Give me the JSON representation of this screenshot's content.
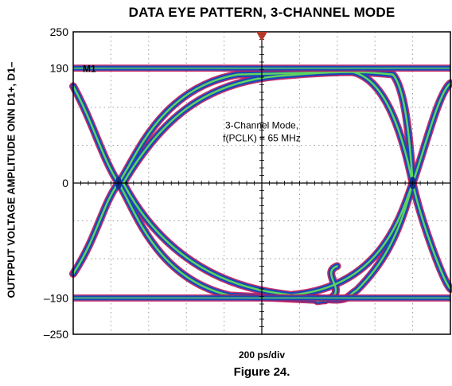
{
  "chart_data": {
    "type": "line",
    "title": "DATA EYE PATTERN, 3-CHANNEL MODE",
    "ylabel": "OUTPPUT VOLTAGE AMPLITUDE ONN D1+, D1–",
    "xlabel": "200 ps/div",
    "y_ticks": [
      "250",
      "190",
      "0",
      "–190",
      "–250"
    ],
    "ylim": [
      -250,
      250
    ],
    "grid": true,
    "annotation": [
      "3-Channel Mode,",
      "f(PCLK) = 65 MHz"
    ],
    "marker_label": "M1",
    "colors": {
      "outer": "#c2185b",
      "middle": "#1a47b8",
      "core": "#5fd35f",
      "marker": "#b53a2a"
    }
  },
  "caption": "Figure 24."
}
